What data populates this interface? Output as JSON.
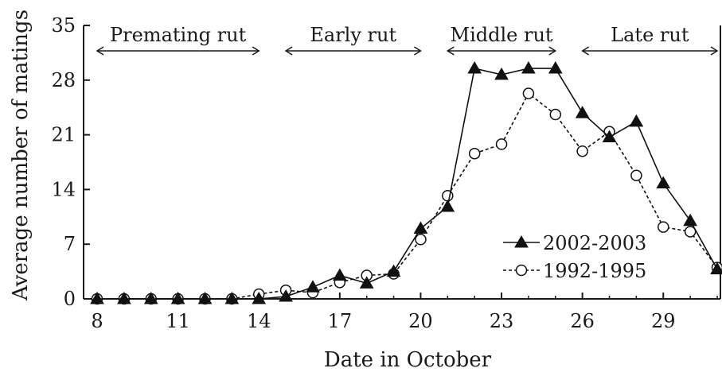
{
  "chart_data": {
    "type": "line",
    "xlabel": "Date in October",
    "ylabel": "Average number of matings",
    "xlim": [
      8,
      31
    ],
    "ylim": [
      0,
      35
    ],
    "x_ticks": [
      8,
      11,
      14,
      17,
      20,
      23,
      26,
      29
    ],
    "y_ticks": [
      0,
      7,
      14,
      21,
      28,
      35
    ],
    "legend_position": "lower-right",
    "grid": false,
    "phases": [
      {
        "label": "Premating rut",
        "start": 8,
        "end": 14
      },
      {
        "label": "Early rut",
        "start": 15,
        "end": 20
      },
      {
        "label": "Middle rut",
        "start": 21,
        "end": 25
      },
      {
        "label": "Late rut",
        "start": 26,
        "end": 31
      }
    ],
    "series": [
      {
        "name": "2002-2003",
        "marker": "filled-triangle",
        "line_style": "solid",
        "color": "#111111",
        "points": [
          [
            8,
            0
          ],
          [
            9,
            0
          ],
          [
            10,
            0
          ],
          [
            11,
            0
          ],
          [
            12,
            0
          ],
          [
            13,
            0
          ],
          [
            14,
            0
          ],
          [
            15,
            0.3
          ],
          [
            16,
            1.5
          ],
          [
            17,
            3.0
          ],
          [
            18,
            2.0
          ],
          [
            19,
            3.5
          ],
          [
            20,
            9.0
          ],
          [
            21,
            11.8
          ],
          [
            22,
            29.5
          ],
          [
            23,
            28.7
          ],
          [
            24,
            29.5
          ],
          [
            25,
            29.5
          ],
          [
            26,
            23.8
          ],
          [
            27,
            20.7
          ],
          [
            28,
            22.7
          ],
          [
            29,
            14.8
          ],
          [
            30,
            10.0
          ],
          [
            31,
            3.8
          ]
        ]
      },
      {
        "name": "1992-1995",
        "marker": "open-circle",
        "line_style": "dashed",
        "color": "#111111",
        "points": [
          [
            8,
            0
          ],
          [
            9,
            0
          ],
          [
            10,
            0
          ],
          [
            11,
            0
          ],
          [
            12,
            0
          ],
          [
            13,
            0
          ],
          [
            14,
            0.6
          ],
          [
            15,
            1.1
          ],
          [
            16,
            0.8
          ],
          [
            17,
            2.1
          ],
          [
            18,
            3.0
          ],
          [
            19,
            3.2
          ],
          [
            20,
            7.6
          ],
          [
            21,
            13.2
          ],
          [
            22,
            18.6
          ],
          [
            23,
            19.8
          ],
          [
            24,
            26.3
          ],
          [
            25,
            23.6
          ],
          [
            26,
            18.9
          ],
          [
            27,
            21.4
          ],
          [
            28,
            15.8
          ],
          [
            29,
            9.2
          ],
          [
            30,
            8.6
          ],
          [
            31,
            4.0
          ]
        ]
      }
    ]
  }
}
